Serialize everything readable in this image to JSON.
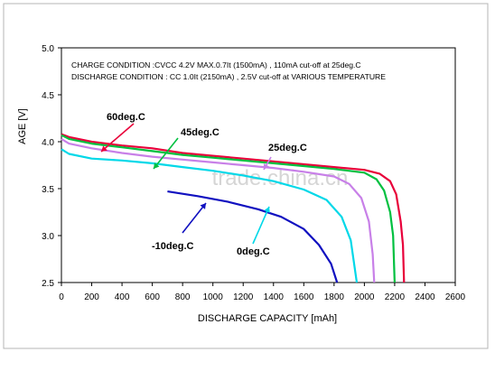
{
  "chart_data": {
    "type": "line",
    "conditions": [
      "CHARGE CONDITION :CVCC 4.2V MAX.0.7It (1500mA) , 110mA cut-off at  25deg.C",
      "DISCHARGE CONDITION : CC 1.0It (2150mA) , 2.5V cut-off at  VARIOUS TEMPERATURE"
    ],
    "xlabel": "DISCHARGE CAPACITY  [mAh]",
    "ylabel": "AGE  [V]",
    "xlim": [
      0,
      2600
    ],
    "ylim": [
      2.5,
      5.0
    ],
    "x_ticks": [
      "0",
      "200",
      "400",
      "600",
      "800",
      "1000",
      "1200",
      "1400",
      "1600",
      "1800",
      "2000",
      "2200",
      "2400",
      "2600"
    ],
    "y_ticks": [
      "2.5",
      "3.0",
      "3.5",
      "4.0",
      "4.5",
      "5.0"
    ],
    "watermark": "trade.china.cn",
    "series": [
      {
        "name": "60deg.C",
        "color": "#e8003a",
        "points": [
          [
            0,
            4.08
          ],
          [
            50,
            4.05
          ],
          [
            200,
            4.0
          ],
          [
            400,
            3.96
          ],
          [
            600,
            3.93
          ],
          [
            800,
            3.88
          ],
          [
            1000,
            3.85
          ],
          [
            1200,
            3.82
          ],
          [
            1400,
            3.79
          ],
          [
            1600,
            3.76
          ],
          [
            1800,
            3.73
          ],
          [
            2000,
            3.7
          ],
          [
            2100,
            3.66
          ],
          [
            2170,
            3.58
          ],
          [
            2210,
            3.44
          ],
          [
            2240,
            3.15
          ],
          [
            2255,
            2.9
          ],
          [
            2262,
            2.5
          ]
        ]
      },
      {
        "name": "45deg.C",
        "color": "#00c040",
        "points": [
          [
            0,
            4.07
          ],
          [
            50,
            4.03
          ],
          [
            200,
            3.98
          ],
          [
            400,
            3.94
          ],
          [
            600,
            3.9
          ],
          [
            800,
            3.86
          ],
          [
            1000,
            3.83
          ],
          [
            1200,
            3.8
          ],
          [
            1400,
            3.77
          ],
          [
            1600,
            3.74
          ],
          [
            1800,
            3.71
          ],
          [
            2000,
            3.67
          ],
          [
            2080,
            3.6
          ],
          [
            2130,
            3.48
          ],
          [
            2170,
            3.25
          ],
          [
            2190,
            3.0
          ],
          [
            2200,
            2.5
          ]
        ]
      },
      {
        "name": "25deg.C",
        "color": "#c880e8",
        "points": [
          [
            0,
            4.03
          ],
          [
            50,
            3.98
          ],
          [
            200,
            3.93
          ],
          [
            400,
            3.88
          ],
          [
            600,
            3.84
          ],
          [
            800,
            3.81
          ],
          [
            1000,
            3.78
          ],
          [
            1200,
            3.75
          ],
          [
            1400,
            3.72
          ],
          [
            1600,
            3.68
          ],
          [
            1800,
            3.63
          ],
          [
            1900,
            3.55
          ],
          [
            1980,
            3.4
          ],
          [
            2030,
            3.15
          ],
          [
            2055,
            2.8
          ],
          [
            2065,
            2.5
          ]
        ]
      },
      {
        "name": "0deg.C",
        "color": "#00d8e8",
        "points": [
          [
            0,
            3.92
          ],
          [
            50,
            3.87
          ],
          [
            200,
            3.82
          ],
          [
            400,
            3.8
          ],
          [
            600,
            3.77
          ],
          [
            800,
            3.73
          ],
          [
            1000,
            3.69
          ],
          [
            1200,
            3.64
          ],
          [
            1400,
            3.58
          ],
          [
            1600,
            3.49
          ],
          [
            1750,
            3.38
          ],
          [
            1850,
            3.2
          ],
          [
            1910,
            2.95
          ],
          [
            1950,
            2.5
          ]
        ]
      },
      {
        "name": "-10deg.C",
        "color": "#1010c0",
        "points": [
          [
            700,
            3.47
          ],
          [
            900,
            3.42
          ],
          [
            1100,
            3.36
          ],
          [
            1300,
            3.28
          ],
          [
            1450,
            3.2
          ],
          [
            1600,
            3.07
          ],
          [
            1700,
            2.9
          ],
          [
            1780,
            2.7
          ],
          [
            1820,
            2.5
          ]
        ]
      }
    ]
  }
}
